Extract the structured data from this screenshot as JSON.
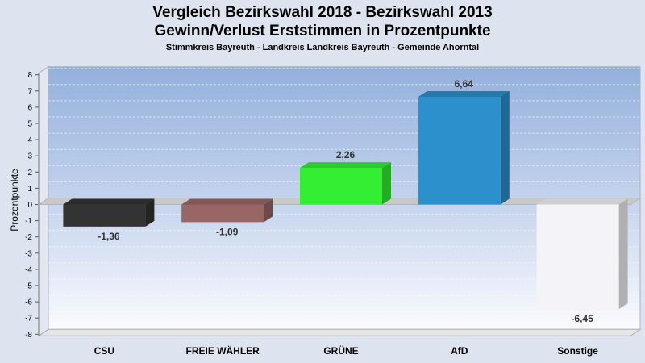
{
  "chart_data": {
    "type": "bar",
    "title": "Vergleich Bezirkswahl 2018 - Bezirkswahl 2013",
    "subtitle": "Gewinn/Verlust Erststimmen in Prozentpunkte",
    "caption": "Stimmkreis Bayreuth - Landkreis Landkreis Bayreuth - Gemeinde Ahorntal",
    "ylabel": "Prozentpunkte",
    "xlabel": "",
    "ylim": [
      -8,
      8
    ],
    "yticks": [
      "8",
      "7",
      "6",
      "5",
      "4",
      "3",
      "2",
      "1",
      "0",
      "-1",
      "-2",
      "-3",
      "-4",
      "-5",
      "-6",
      "-7",
      "-8"
    ],
    "categories": [
      "CSU",
      "FREIE WÄHLER",
      "GRÜNE",
      "AfD",
      "Sonstige"
    ],
    "values": [
      -1.36,
      -1.09,
      2.26,
      6.64,
      -6.45
    ],
    "value_labels": [
      "-1,36",
      "-1,09",
      "2,26",
      "6,64",
      "-6,45"
    ],
    "colors": [
      "#333333",
      "#996666",
      "#33ee33",
      "#2b90cc",
      "#f4f4f8"
    ],
    "grid": true
  }
}
